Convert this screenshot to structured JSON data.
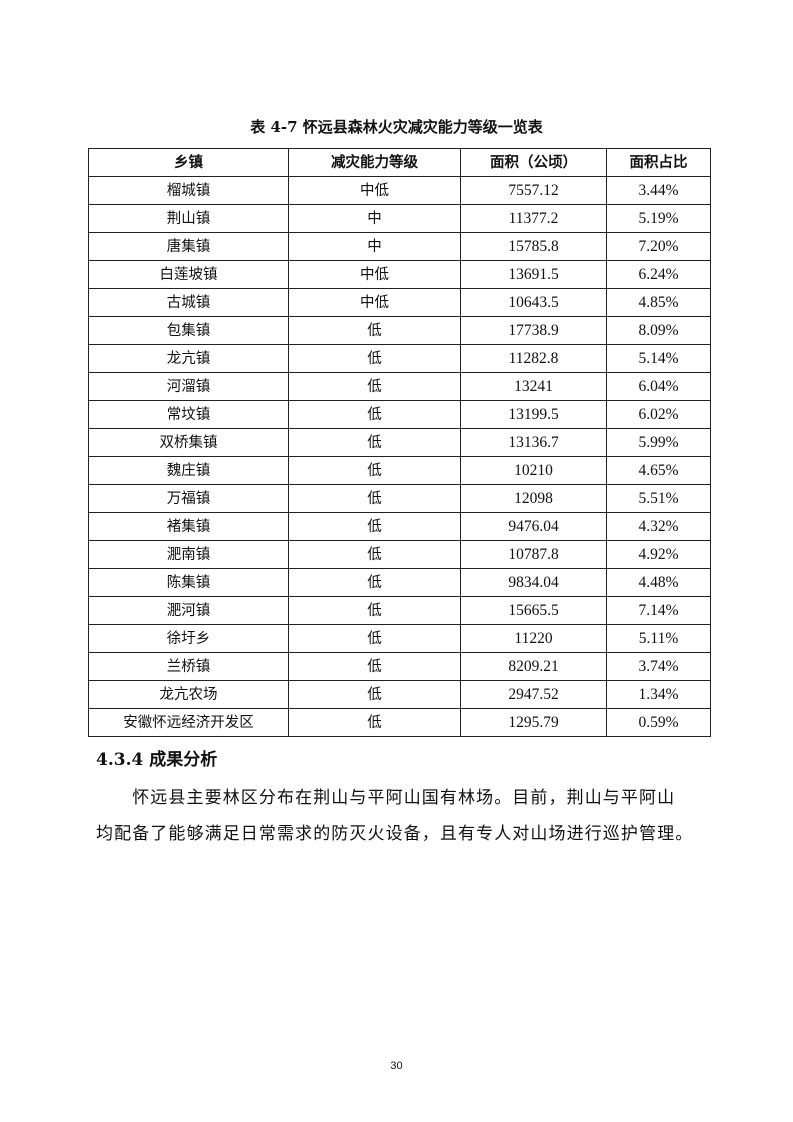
{
  "caption": "表 4-7  怀远县森林火灾减灾能力等级一览表",
  "table": {
    "headers": [
      "乡镇",
      "减灾能力等级",
      "面积（公顷）",
      "面积占比"
    ],
    "rows": [
      [
        "榴城镇",
        "中低",
        "7557.12",
        "3.44%"
      ],
      [
        "荆山镇",
        "中",
        "11377.2",
        "5.19%"
      ],
      [
        "唐集镇",
        "中",
        "15785.8",
        "7.20%"
      ],
      [
        "白莲坡镇",
        "中低",
        "13691.5",
        "6.24%"
      ],
      [
        "古城镇",
        "中低",
        "10643.5",
        "4.85%"
      ],
      [
        "包集镇",
        "低",
        "17738.9",
        "8.09%"
      ],
      [
        "龙亢镇",
        "低",
        "11282.8",
        "5.14%"
      ],
      [
        "河溜镇",
        "低",
        "13241",
        "6.04%"
      ],
      [
        "常坟镇",
        "低",
        "13199.5",
        "6.02%"
      ],
      [
        "双桥集镇",
        "低",
        "13136.7",
        "5.99%"
      ],
      [
        "魏庄镇",
        "低",
        "10210",
        "4.65%"
      ],
      [
        "万福镇",
        "低",
        "12098",
        "5.51%"
      ],
      [
        "褚集镇",
        "低",
        "9476.04",
        "4.32%"
      ],
      [
        "淝南镇",
        "低",
        "10787.8",
        "4.92%"
      ],
      [
        "陈集镇",
        "低",
        "9834.04",
        "4.48%"
      ],
      [
        "淝河镇",
        "低",
        "15665.5",
        "7.14%"
      ],
      [
        "徐圩乡",
        "低",
        "11220",
        "5.11%"
      ],
      [
        "兰桥镇",
        "低",
        "8209.21",
        "3.74%"
      ],
      [
        "龙亢农场",
        "低",
        "2947.52",
        "1.34%"
      ],
      [
        "安徽怀远经济开发区",
        "低",
        "1295.79",
        "0.59%"
      ]
    ]
  },
  "section_heading": "4.3.4 成果分析",
  "paragraph_lines": [
    "　　怀远县主要林区分布在荆山与平阿山国有林场。目前，荆山与平阿山",
    "均配备了能够满足日常需求的防灭火设备，且有专人对山场进行巡护管理。"
  ],
  "page_number": "30"
}
